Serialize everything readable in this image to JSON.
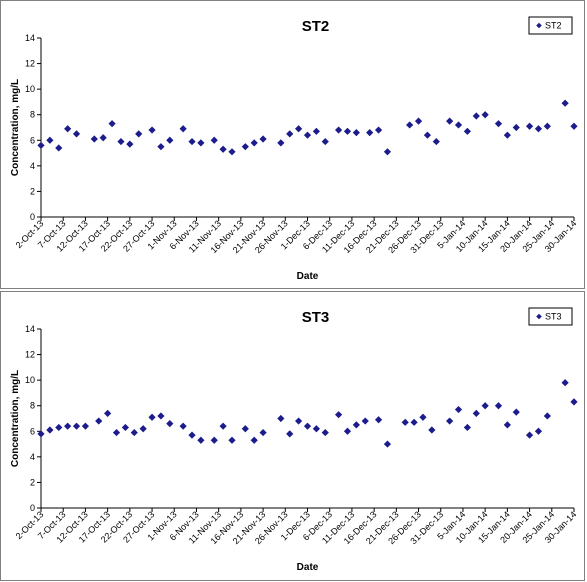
{
  "chart_data": [
    {
      "type": "scatter",
      "title": "ST2",
      "xlabel": "Date",
      "ylabel": "Concentration, mg/L",
      "ylim": [
        0,
        14
      ],
      "yticks": [
        0,
        2,
        4,
        6,
        8,
        10,
        12,
        14
      ],
      "xlim": [
        "2-Oct-13",
        "30-Jan-14"
      ],
      "xtick_labels": [
        "2-Oct-13",
        "7-Oct-13",
        "12-Oct-13",
        "17-Oct-13",
        "22-Oct-13",
        "27-Oct-13",
        "1-Nov-13",
        "6-Nov-13",
        "11-Nov-13",
        "16-Nov-13",
        "21-Nov-13",
        "26-Nov-13",
        "1-Dec-13",
        "6-Dec-13",
        "11-Dec-13",
        "16-Dec-13",
        "21-Dec-13",
        "26-Dec-13",
        "31-Dec-13",
        "5-Jan-14",
        "10-Jan-14",
        "15-Jan-14",
        "20-Jan-14",
        "25-Jan-14",
        "30-Jan-14"
      ],
      "grid": false,
      "legend_position": "top-right",
      "marker_color": "#1c1c8c",
      "series": [
        {
          "name": "ST2",
          "points": [
            [
              "2-Oct-13",
              5.6
            ],
            [
              "4-Oct-13",
              6.0
            ],
            [
              "6-Oct-13",
              5.4
            ],
            [
              "8-Oct-13",
              6.9
            ],
            [
              "10-Oct-13",
              6.5
            ],
            [
              "14-Oct-13",
              6.1
            ],
            [
              "16-Oct-13",
              6.2
            ],
            [
              "18-Oct-13",
              7.3
            ],
            [
              "20-Oct-13",
              5.9
            ],
            [
              "22-Oct-13",
              5.7
            ],
            [
              "24-Oct-13",
              6.5
            ],
            [
              "27-Oct-13",
              6.8
            ],
            [
              "29-Oct-13",
              5.5
            ],
            [
              "31-Oct-13",
              6.0
            ],
            [
              "3-Nov-13",
              6.9
            ],
            [
              "5-Nov-13",
              5.9
            ],
            [
              "7-Nov-13",
              5.8
            ],
            [
              "10-Nov-13",
              6.0
            ],
            [
              "12-Nov-13",
              5.3
            ],
            [
              "14-Nov-13",
              5.1
            ],
            [
              "17-Nov-13",
              5.5
            ],
            [
              "19-Nov-13",
              5.8
            ],
            [
              "21-Nov-13",
              6.1
            ],
            [
              "25-Nov-13",
              5.8
            ],
            [
              "27-Nov-13",
              6.5
            ],
            [
              "29-Nov-13",
              6.9
            ],
            [
              "1-Dec-13",
              6.4
            ],
            [
              "3-Dec-13",
              6.7
            ],
            [
              "5-Dec-13",
              5.9
            ],
            [
              "8-Dec-13",
              6.8
            ],
            [
              "10-Dec-13",
              6.7
            ],
            [
              "12-Dec-13",
              6.6
            ],
            [
              "15-Dec-13",
              6.6
            ],
            [
              "17-Dec-13",
              6.8
            ],
            [
              "19-Dec-13",
              5.1
            ],
            [
              "24-Dec-13",
              7.2
            ],
            [
              "26-Dec-13",
              7.5
            ],
            [
              "28-Dec-13",
              6.4
            ],
            [
              "30-Dec-13",
              5.9
            ],
            [
              "2-Jan-14",
              7.5
            ],
            [
              "4-Jan-14",
              7.2
            ],
            [
              "6-Jan-14",
              6.7
            ],
            [
              "8-Jan-14",
              7.9
            ],
            [
              "10-Jan-14",
              8.0
            ],
            [
              "13-Jan-14",
              7.3
            ],
            [
              "15-Jan-14",
              6.4
            ],
            [
              "17-Jan-14",
              7.0
            ],
            [
              "20-Jan-14",
              7.1
            ],
            [
              "22-Jan-14",
              6.9
            ],
            [
              "24-Jan-14",
              7.1
            ],
            [
              "28-Jan-14",
              8.9
            ],
            [
              "30-Jan-14",
              7.1
            ]
          ]
        }
      ]
    },
    {
      "type": "scatter",
      "title": "ST3",
      "xlabel": "Date",
      "ylabel": "Concentration, mg/L",
      "ylim": [
        0,
        14
      ],
      "yticks": [
        0,
        2,
        4,
        6,
        8,
        10,
        12,
        14
      ],
      "xlim": [
        "2-Oct-13",
        "30-Jan-14"
      ],
      "xtick_labels": [
        "2-Oct-13",
        "7-Oct-13",
        "12-Oct-13",
        "17-Oct-13",
        "22-Oct-13",
        "27-Oct-13",
        "1-Nov-13",
        "6-Nov-13",
        "11-Nov-13",
        "16-Nov-13",
        "21-Nov-13",
        "26-Nov-13",
        "1-Dec-13",
        "6-Dec-13",
        "11-Dec-13",
        "16-Dec-13",
        "21-Dec-13",
        "26-Dec-13",
        "31-Dec-13",
        "5-Jan-14",
        "10-Jan-14",
        "15-Jan-14",
        "20-Jan-14",
        "25-Jan-14",
        "30-Jan-14"
      ],
      "grid": false,
      "legend_position": "top-right",
      "marker_color": "#1c1c8c",
      "series": [
        {
          "name": "ST3",
          "points": [
            [
              "2-Oct-13",
              5.8
            ],
            [
              "4-Oct-13",
              6.1
            ],
            [
              "6-Oct-13",
              6.3
            ],
            [
              "8-Oct-13",
              6.4
            ],
            [
              "10-Oct-13",
              6.4
            ],
            [
              "12-Oct-13",
              6.4
            ],
            [
              "15-Oct-13",
              6.8
            ],
            [
              "17-Oct-13",
              7.4
            ],
            [
              "19-Oct-13",
              5.9
            ],
            [
              "21-Oct-13",
              6.3
            ],
            [
              "23-Oct-13",
              5.9
            ],
            [
              "25-Oct-13",
              6.2
            ],
            [
              "27-Oct-13",
              7.1
            ],
            [
              "29-Oct-13",
              7.2
            ],
            [
              "31-Oct-13",
              6.6
            ],
            [
              "3-Nov-13",
              6.4
            ],
            [
              "5-Nov-13",
              5.7
            ],
            [
              "7-Nov-13",
              5.3
            ],
            [
              "10-Nov-13",
              5.3
            ],
            [
              "12-Nov-13",
              6.4
            ],
            [
              "14-Nov-13",
              5.3
            ],
            [
              "17-Nov-13",
              6.2
            ],
            [
              "19-Nov-13",
              5.3
            ],
            [
              "21-Nov-13",
              5.9
            ],
            [
              "25-Nov-13",
              7.0
            ],
            [
              "27-Nov-13",
              5.8
            ],
            [
              "29-Nov-13",
              6.8
            ],
            [
              "1-Dec-13",
              6.4
            ],
            [
              "3-Dec-13",
              6.2
            ],
            [
              "5-Dec-13",
              5.9
            ],
            [
              "8-Dec-13",
              7.3
            ],
            [
              "10-Dec-13",
              6.0
            ],
            [
              "12-Dec-13",
              6.5
            ],
            [
              "14-Dec-13",
              6.8
            ],
            [
              "17-Dec-13",
              6.9
            ],
            [
              "19-Dec-13",
              5.0
            ],
            [
              "23-Dec-13",
              6.7
            ],
            [
              "25-Dec-13",
              6.7
            ],
            [
              "27-Dec-13",
              7.1
            ],
            [
              "29-Dec-13",
              6.1
            ],
            [
              "2-Jan-14",
              6.8
            ],
            [
              "4-Jan-14",
              7.7
            ],
            [
              "6-Jan-14",
              6.3
            ],
            [
              "8-Jan-14",
              7.4
            ],
            [
              "10-Jan-14",
              8.0
            ],
            [
              "13-Jan-14",
              8.0
            ],
            [
              "15-Jan-14",
              6.5
            ],
            [
              "17-Jan-14",
              7.5
            ],
            [
              "20-Jan-14",
              5.7
            ],
            [
              "22-Jan-14",
              6.0
            ],
            [
              "24-Jan-14",
              7.2
            ],
            [
              "28-Jan-14",
              9.8
            ],
            [
              "30-Jan-14",
              8.3
            ]
          ]
        }
      ]
    }
  ]
}
